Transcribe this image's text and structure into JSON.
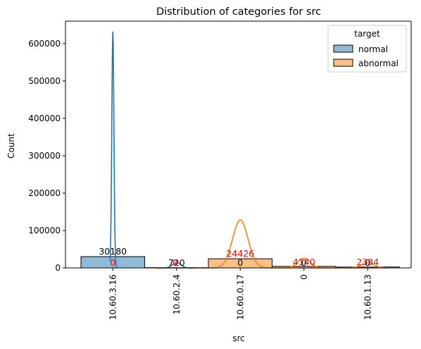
{
  "chart_data": {
    "type": "bar",
    "title": "Distribution of categories for src",
    "xlabel": "src",
    "ylabel": "Count",
    "categories": [
      "10.60.3.16",
      "10.60.2.4",
      "10.60.0.17",
      "0",
      "10.60.1.13"
    ],
    "ylim": [
      0,
      660000
    ],
    "yticks": [
      0,
      100000,
      200000,
      300000,
      400000,
      500000,
      600000
    ],
    "ytick_labels": [
      "0",
      "100000",
      "200000",
      "300000",
      "400000",
      "500000",
      "600000"
    ],
    "grid": false,
    "legend": {
      "title": "target",
      "placement": "top-right"
    },
    "series": [
      {
        "name": "normal",
        "color": "#1f77b4",
        "fill": "#8fbbd9",
        "values": [
          30180,
          720,
          0,
          0,
          0
        ]
      },
      {
        "name": "abnormal",
        "color": "#ff7f0e",
        "fill": "#ffbf86",
        "values": [
          0,
          0,
          24426,
          4140,
          2334
        ]
      }
    ],
    "data_labels": [
      {
        "category": "10.60.3.16",
        "text": "30180",
        "color": "#000000"
      },
      {
        "category": "10.60.3.16",
        "text": "0",
        "color": "#ff0000"
      },
      {
        "category": "10.60.2.4",
        "text": "720",
        "color": "#000000"
      },
      {
        "category": "10.60.2.4",
        "text": "0",
        "color": "#ff0000"
      },
      {
        "category": "10.60.0.17",
        "text": "24426",
        "color": "#ff0000"
      },
      {
        "category": "10.60.0.17",
        "text": "0",
        "color": "#000000"
      },
      {
        "category": "0",
        "text": "4140",
        "color": "#ff0000"
      },
      {
        "category": "0",
        "text": "0",
        "color": "#000000"
      },
      {
        "category": "10.60.1.13",
        "text": "2334",
        "color": "#ff0000"
      },
      {
        "category": "10.60.1.13",
        "text": "0",
        "color": "#000000"
      }
    ],
    "kde": [
      {
        "series": "normal",
        "peak": 632000,
        "category": "10.60.3.16"
      },
      {
        "series": "abnormal",
        "peak": 128000,
        "category": "10.60.0.17"
      }
    ]
  }
}
